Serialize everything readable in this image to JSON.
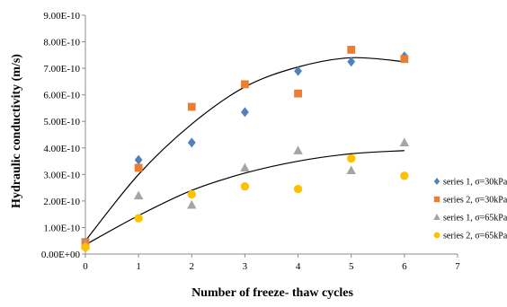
{
  "chart_data": {
    "type": "scatter",
    "title": "",
    "xlabel": "Number of freeze- thaw cycles",
    "ylabel": "Hydraulic conductivity (m/s)",
    "xlim": [
      0,
      7
    ],
    "ylim": [
      0,
      9e-10
    ],
    "x_ticks": [
      "0",
      "1",
      "2",
      "3",
      "4",
      "5",
      "6",
      "7"
    ],
    "y_ticks": [
      "0.00E+00",
      "1.00E-10",
      "2.00E-10",
      "3.00E-10",
      "4.00E-10",
      "5.00E-10",
      "6.00E-10",
      "7.00E-10",
      "8.00E-10",
      "9.00E-10"
    ],
    "legend_position": "right",
    "grid": false,
    "series": [
      {
        "name": "series 1, σ=30kPa",
        "marker": "diamond",
        "color": "#4f81bd",
        "x": [
          0,
          1,
          2,
          3,
          4,
          5,
          6
        ],
        "y": [
          4.5e-11,
          3.55e-10,
          4.2e-10,
          5.35e-10,
          6.9e-10,
          7.25e-10,
          7.45e-10
        ]
      },
      {
        "name": "series 2, σ=30kPa",
        "marker": "square",
        "color": "#ed7d31",
        "x": [
          0,
          1,
          2,
          3,
          4,
          5,
          6
        ],
        "y": [
          4.5e-11,
          3.25e-10,
          5.55e-10,
          6.4e-10,
          6.05e-10,
          7.7e-10,
          7.35e-10
        ]
      },
      {
        "name": "series 1, σ=65kPa",
        "marker": "triangle",
        "color": "#a5a5a5",
        "x": [
          0,
          1,
          2,
          3,
          4,
          5,
          6
        ],
        "y": [
          3.5e-11,
          2.2e-10,
          1.85e-10,
          3.25e-10,
          3.9e-10,
          3.15e-10,
          4.2e-10
        ]
      },
      {
        "name": "series 2, σ=65kPa",
        "marker": "circle",
        "color": "#ffc000",
        "x": [
          0,
          1,
          2,
          3,
          4,
          5,
          6
        ],
        "y": [
          2.5e-11,
          1.35e-10,
          2.25e-10,
          2.55e-10,
          2.45e-10,
          3.6e-10,
          2.95e-10
        ]
      }
    ],
    "trendlines": [
      {
        "type": "polynomial",
        "color": "#000000",
        "x": [
          0,
          1,
          2,
          3,
          4,
          5,
          6
        ],
        "y": [
          5e-11,
          3e-10,
          4.9e-10,
          6.3e-10,
          7.05e-10,
          7.4e-10,
          7.25e-10
        ]
      },
      {
        "type": "polynomial",
        "color": "#000000",
        "x": [
          0,
          1,
          2,
          3,
          4,
          5,
          6
        ],
        "y": [
          3.5e-11,
          1.45e-10,
          2.4e-10,
          3.05e-10,
          3.5e-10,
          3.78e-10,
          3.9e-10
        ]
      }
    ]
  }
}
